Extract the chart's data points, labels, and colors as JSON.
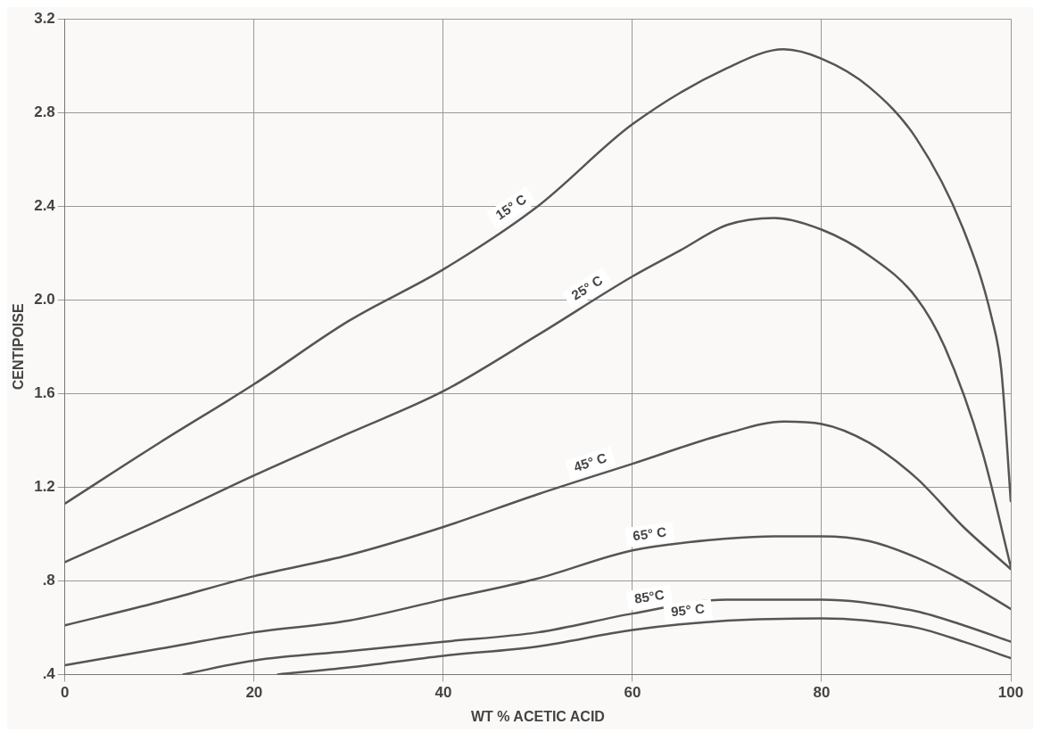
{
  "chart_data": {
    "type": "line",
    "xlabel": "WT % ACETIC ACID",
    "ylabel": "CENTIPOISE",
    "xlim": [
      0,
      100
    ],
    "xticks": [
      0,
      20,
      40,
      60,
      80,
      100
    ],
    "ylim": [
      0.4,
      3.2
    ],
    "yticks": [
      {
        "value": 0.4,
        "label": ".4"
      },
      {
        "value": 0.8,
        "label": ".8"
      },
      1.2,
      1.6,
      {
        "value": 2,
        "label": "2.0"
      },
      2.4,
      2.8,
      3.2
    ],
    "grid": true,
    "legend": false,
    "marker": "none",
    "line_style": "solid",
    "series": [
      {
        "name": "15° C",
        "color": "#555555",
        "x": [
          0,
          10,
          20,
          30,
          40,
          50,
          60,
          70,
          76,
          80,
          85,
          90,
          95,
          98,
          99,
          100
        ],
        "values": [
          1.13,
          1.39,
          1.64,
          1.91,
          2.13,
          2.4,
          2.75,
          2.99,
          3.07,
          3.03,
          2.91,
          2.69,
          2.3,
          1.92,
          1.7,
          1.14
        ]
      },
      {
        "name": "25° C",
        "color": "#555555",
        "x": [
          0,
          10,
          20,
          30,
          40,
          50,
          60,
          65,
          70,
          75,
          80,
          85,
          90,
          93,
          97,
          100
        ],
        "values": [
          0.88,
          1.06,
          1.25,
          1.43,
          1.61,
          1.85,
          2.1,
          2.21,
          2.32,
          2.35,
          2.3,
          2.19,
          2.01,
          1.8,
          1.35,
          0.86
        ]
      },
      {
        "name": "45° C",
        "color": "#555555",
        "x": [
          0,
          10,
          20,
          30,
          40,
          50,
          60,
          70,
          76,
          80,
          85,
          90,
          95,
          100
        ],
        "values": [
          0.61,
          0.71,
          0.82,
          0.91,
          1.03,
          1.17,
          1.3,
          1.43,
          1.48,
          1.47,
          1.39,
          1.24,
          1.03,
          0.85
        ]
      },
      {
        "name": "65° C",
        "color": "#555555",
        "x": [
          0,
          10,
          20,
          30,
          40,
          50,
          60,
          70,
          75,
          80,
          85,
          90,
          95,
          100
        ],
        "values": [
          0.44,
          0.51,
          0.58,
          0.63,
          0.72,
          0.81,
          0.93,
          0.98,
          0.99,
          0.99,
          0.97,
          0.9,
          0.8,
          0.68
        ]
      },
      {
        "name": "85°C",
        "color": "#555555",
        "x": [
          12.5,
          20,
          30,
          40,
          50,
          60,
          70,
          80,
          90,
          95,
          100
        ],
        "values": [
          0.4,
          0.46,
          0.5,
          0.54,
          0.58,
          0.66,
          0.72,
          0.72,
          0.67,
          0.61,
          0.54
        ]
      },
      {
        "name": "95° C",
        "color": "#555555",
        "x": [
          22.5,
          30,
          40,
          50,
          60,
          70,
          80,
          90,
          95,
          100
        ],
        "values": [
          0.4,
          0.43,
          0.48,
          0.52,
          0.59,
          0.63,
          0.64,
          0.6,
          0.54,
          0.47
        ]
      }
    ]
  }
}
